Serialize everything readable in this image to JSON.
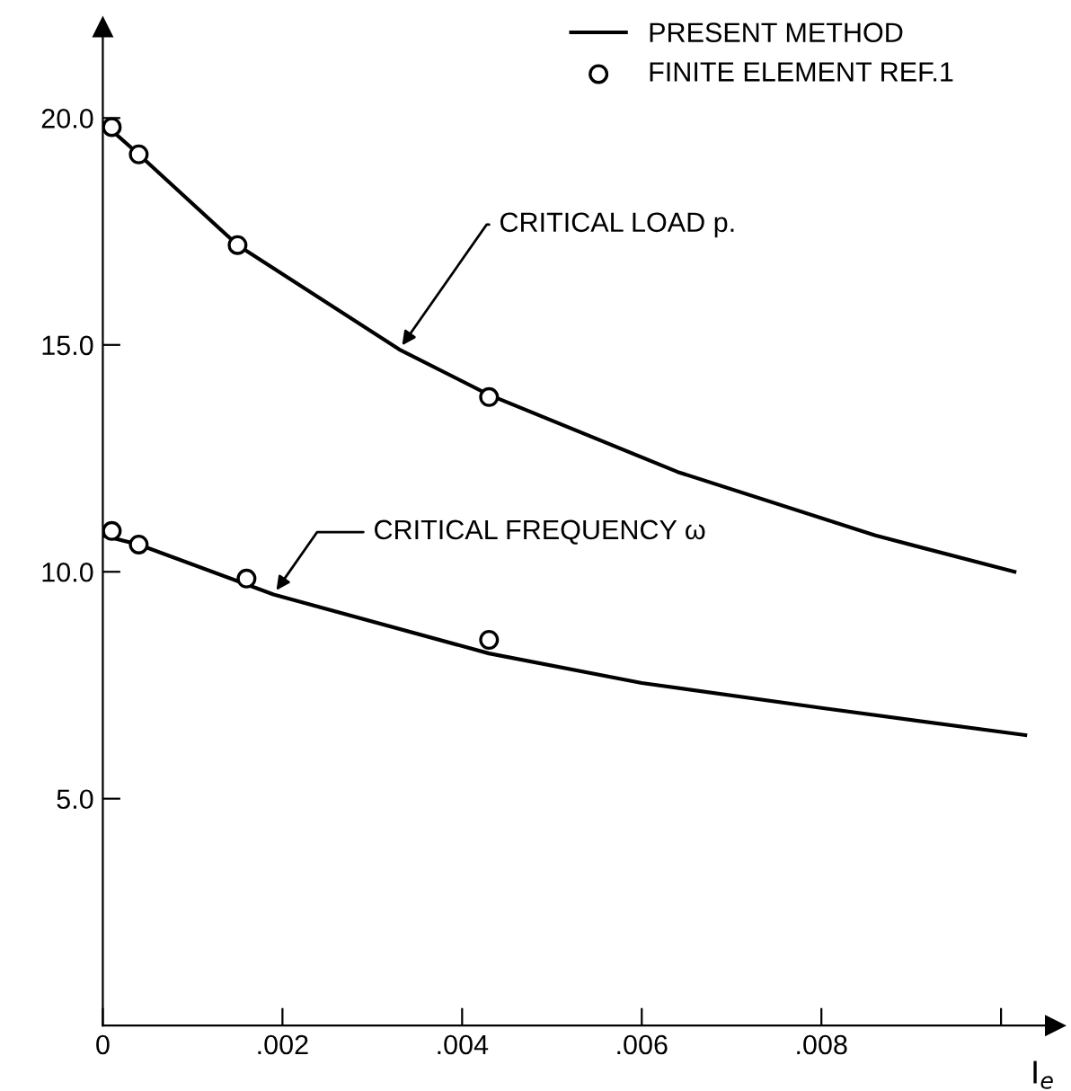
{
  "chart_data": {
    "type": "line",
    "xlabel": "I$_{e}$",
    "xlim": [
      0,
      0.0106
    ],
    "ylim": [
      0,
      22
    ],
    "xticks": [
      0,
      {
        "value": 0.002,
        "label": ".002"
      },
      {
        "value": 0.004,
        "label": ".004"
      },
      {
        "value": 0.006,
        "label": ".006"
      },
      {
        "value": 0.008,
        "label": ".008"
      },
      {
        "value": 0.01,
        "label": null
      }
    ],
    "yticks": [
      {
        "value": 5,
        "label": "5.0"
      },
      {
        "value": 10,
        "label": "10.0"
      },
      {
        "value": 15,
        "label": "15.0"
      },
      {
        "value": 20,
        "label": "20.0"
      }
    ],
    "series": [
      {
        "name": "PRESENT METHOD",
        "color": "#000000",
        "x": [
          0.0,
          0.0004,
          0.0015,
          0.0033,
          0.0043,
          0.0064,
          0.0086,
          0.01015
        ],
        "values": [
          19.9,
          19.2,
          17.2,
          14.9,
          13.9,
          12.2,
          10.8,
          10.0
        ]
      },
      {
        "color": "#000000",
        "x": [
          0.0,
          0.0004,
          0.0019,
          0.0043,
          0.006,
          0.008,
          0.01027
        ],
        "values": [
          10.8,
          10.6,
          9.5,
          8.2,
          7.55,
          7.0,
          6.4
        ]
      },
      {
        "name": "FINITE ELEMENT REF.1",
        "type": "scatter",
        "color": "#000000",
        "marker": "circle",
        "x": [
          0.0001,
          0.0004,
          0.0015,
          0.0043
        ],
        "values": [
          19.8,
          19.2,
          17.2,
          13.85
        ]
      },
      {
        "type": "scatter",
        "color": "#000000",
        "marker": "circle",
        "x": [
          0.0001,
          0.0004,
          0.0016,
          0.0043
        ],
        "values": [
          10.9,
          10.6,
          9.85,
          8.5
        ]
      }
    ],
    "annotations": [
      {
        "text": "CRITICAL LOAD p.",
        "x": 0.0033,
        "y": 14.9
      },
      {
        "text": "CRITICAL FREQUENCY ω",
        "x": 0.0019,
        "y": 9.5
      }
    ],
    "legend": "top right",
    "grid": false
  }
}
